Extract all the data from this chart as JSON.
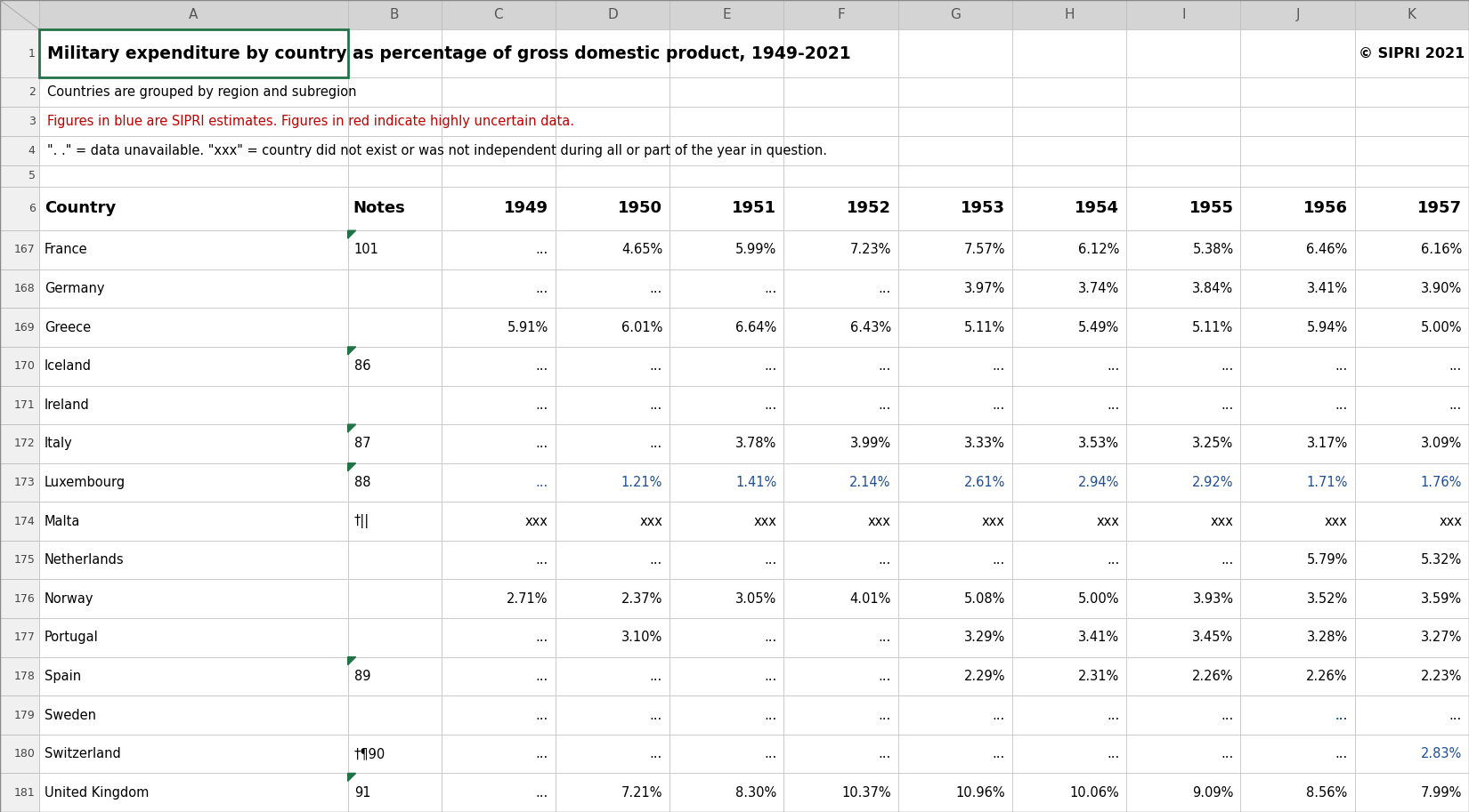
{
  "col_headers": [
    "A",
    "B",
    "C",
    "D",
    "E",
    "F",
    "G",
    "H",
    "I",
    "J",
    "K"
  ],
  "title_row1": "Military expenditure by country as percentage of gross domestic product, 1949-2021",
  "title_row1_right": "© SIPRI 2021",
  "row2_text": "Countries are grouped by region and subregion",
  "row3_text": "Figures in blue are SIPRI estimates. Figures in red indicate highly uncertain data.",
  "row4_text": "\". .\" = data unavailable. \"xxx\" = country did not exist or was not independent during all or part of the year in question.",
  "header_row": [
    "Country",
    "Notes",
    "1949",
    "1950",
    "1951",
    "1952",
    "1953",
    "1954",
    "1955",
    "1956",
    "1957"
  ],
  "data_rows": [
    {
      "row": "167",
      "country": "France",
      "notes": "101",
      "note_marker": true,
      "vals": [
        "...",
        "4.65%",
        "5.99%",
        "7.23%",
        "7.57%",
        "6.12%",
        "5.38%",
        "6.46%",
        "6.16%"
      ],
      "colors": [
        "k",
        "k",
        "k",
        "k",
        "k",
        "k",
        "k",
        "k",
        "k"
      ]
    },
    {
      "row": "168",
      "country": "Germany",
      "notes": "",
      "note_marker": false,
      "vals": [
        "...",
        "...",
        "...",
        "...",
        "3.97%",
        "3.74%",
        "3.84%",
        "3.41%",
        "3.90%"
      ],
      "colors": [
        "k",
        "k",
        "k",
        "k",
        "k",
        "k",
        "k",
        "k",
        "k"
      ]
    },
    {
      "row": "169",
      "country": "Greece",
      "notes": "",
      "note_marker": false,
      "vals": [
        "5.91%",
        "6.01%",
        "6.64%",
        "6.43%",
        "5.11%",
        "5.49%",
        "5.11%",
        "5.94%",
        "5.00%"
      ],
      "colors": [
        "k",
        "k",
        "k",
        "k",
        "k",
        "k",
        "k",
        "k",
        "k"
      ]
    },
    {
      "row": "170",
      "country": "Iceland",
      "notes": "86",
      "note_marker": true,
      "vals": [
        "...",
        "...",
        "...",
        "...",
        "...",
        "...",
        "...",
        "...",
        "..."
      ],
      "colors": [
        "k",
        "k",
        "k",
        "k",
        "k",
        "k",
        "k",
        "k",
        "k"
      ]
    },
    {
      "row": "171",
      "country": "Ireland",
      "notes": "",
      "note_marker": false,
      "vals": [
        "...",
        "...",
        "...",
        "...",
        "...",
        "...",
        "...",
        "...",
        "..."
      ],
      "colors": [
        "k",
        "k",
        "k",
        "k",
        "k",
        "k",
        "k",
        "k",
        "k"
      ]
    },
    {
      "row": "172",
      "country": "Italy",
      "notes": "87",
      "note_marker": true,
      "vals": [
        "...",
        "...",
        "3.78%",
        "3.99%",
        "3.33%",
        "3.53%",
        "3.25%",
        "3.17%",
        "3.09%"
      ],
      "colors": [
        "k",
        "k",
        "k",
        "k",
        "k",
        "k",
        "k",
        "k",
        "k"
      ]
    },
    {
      "row": "173",
      "country": "Luxembourg",
      "notes": "88",
      "note_marker": true,
      "vals": [
        "...",
        "1.21%",
        "1.41%",
        "2.14%",
        "2.61%",
        "2.94%",
        "2.92%",
        "1.71%",
        "1.76%"
      ],
      "colors": [
        "b",
        "b",
        "b",
        "b",
        "b",
        "b",
        "b",
        "b",
        "b"
      ]
    },
    {
      "row": "174",
      "country": "Malta",
      "notes": "†||",
      "note_marker": false,
      "vals": [
        "xxx",
        "xxx",
        "xxx",
        "xxx",
        "xxx",
        "xxx",
        "xxx",
        "xxx",
        "xxx"
      ],
      "colors": [
        "k",
        "k",
        "k",
        "k",
        "k",
        "k",
        "k",
        "k",
        "k"
      ]
    },
    {
      "row": "175",
      "country": "Netherlands",
      "notes": "",
      "note_marker": false,
      "vals": [
        "...",
        "...",
        "...",
        "...",
        "...",
        "...",
        "...",
        "5.79%",
        "5.32%"
      ],
      "colors": [
        "k",
        "k",
        "k",
        "k",
        "k",
        "k",
        "k",
        "k",
        "k"
      ]
    },
    {
      "row": "176",
      "country": "Norway",
      "notes": "",
      "note_marker": false,
      "vals": [
        "2.71%",
        "2.37%",
        "3.05%",
        "4.01%",
        "5.08%",
        "5.00%",
        "3.93%",
        "3.52%",
        "3.59%"
      ],
      "colors": [
        "k",
        "k",
        "k",
        "k",
        "k",
        "k",
        "k",
        "k",
        "k"
      ]
    },
    {
      "row": "177",
      "country": "Portugal",
      "notes": "",
      "note_marker": false,
      "vals": [
        "...",
        "3.10%",
        "...",
        "...",
        "3.29%",
        "3.41%",
        "3.45%",
        "3.28%",
        "3.27%"
      ],
      "colors": [
        "k",
        "k",
        "k",
        "k",
        "k",
        "k",
        "k",
        "k",
        "k"
      ]
    },
    {
      "row": "178",
      "country": "Spain",
      "notes": "89",
      "note_marker": true,
      "vals": [
        "...",
        "...",
        "...",
        "...",
        "2.29%",
        "2.31%",
        "2.26%",
        "2.26%",
        "2.23%"
      ],
      "colors": [
        "k",
        "k",
        "k",
        "k",
        "k",
        "k",
        "k",
        "k",
        "k"
      ]
    },
    {
      "row": "179",
      "country": "Sweden",
      "notes": "",
      "note_marker": false,
      "vals": [
        "...",
        "...",
        "...",
        "...",
        "...",
        "...",
        "...",
        "...",
        "..."
      ],
      "colors": [
        "k",
        "k",
        "k",
        "k",
        "k",
        "k",
        "k",
        "k",
        "k"
      ]
    },
    {
      "row": "180",
      "country": "Switzerland",
      "notes": "†¶90",
      "note_marker": false,
      "vals": [
        "...",
        "...",
        "...",
        "...",
        "...",
        "...",
        "...",
        "...",
        "2.83%"
      ],
      "colors": [
        "k",
        "k",
        "k",
        "k",
        "k",
        "k",
        "k",
        "k",
        "b"
      ]
    },
    {
      "row": "181",
      "country": "United Kingdom",
      "notes": "91",
      "note_marker": true,
      "vals": [
        "...",
        "7.21%",
        "8.30%",
        "10.37%",
        "10.96%",
        "10.06%",
        "9.09%",
        "8.56%",
        "7.99%"
      ],
      "colors": [
        "k",
        "k",
        "k",
        "k",
        "k",
        "k",
        "k",
        "k",
        "k"
      ]
    }
  ],
  "bg_color": "#ffffff",
  "col_header_bg": "#d4d4d4",
  "row_num_bg": "#f0f0f0",
  "corner_bg": "#d8d8d8",
  "grid_color": "#c0c0c0",
  "green_border": "#217346",
  "blue_text": "#1f4e99",
  "red_text": "#c00000",
  "black_text": "#000000",
  "sweden_blue_col": 7
}
